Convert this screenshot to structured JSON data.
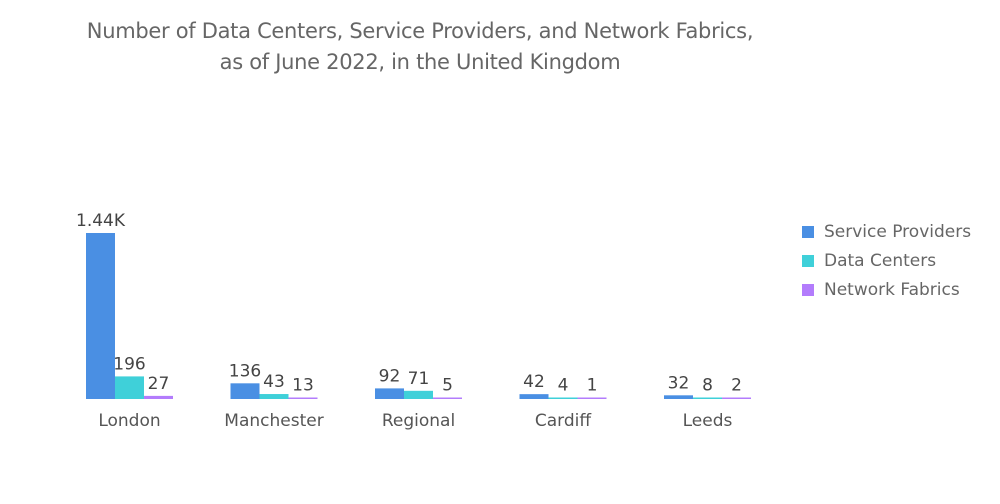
{
  "chart_data": {
    "type": "bar",
    "title": "Number of Data Centers, Service Providers, and Network Fabrics, as of June 2022, in the United Kingdom",
    "title_lines": [
      "Number of Data Centers, Service Providers, and Network Fabrics,",
      "as of June 2022, in the United Kingdom"
    ],
    "categories": [
      "London",
      "Manchester",
      "Regional",
      "Cardiff",
      "Leeds"
    ],
    "series": [
      {
        "name": "Service Providers",
        "color": "#4a8fe3",
        "values": [
          1440,
          136,
          92,
          42,
          32
        ],
        "labels": [
          "1.44K",
          "136",
          "92",
          "42",
          "32"
        ]
      },
      {
        "name": "Data Centers",
        "color": "#3fd0d9",
        "values": [
          196,
          43,
          71,
          4,
          8
        ],
        "labels": [
          "196",
          "43",
          "71",
          "4",
          "8"
        ]
      },
      {
        "name": "Network Fabrics",
        "color": "#b37cfc",
        "values": [
          27,
          13,
          5,
          1,
          2
        ],
        "labels": [
          "27",
          "13",
          "5",
          "1",
          "2"
        ]
      }
    ],
    "ylim": [
      0,
      1440
    ],
    "grid": false,
    "legend": "right"
  }
}
